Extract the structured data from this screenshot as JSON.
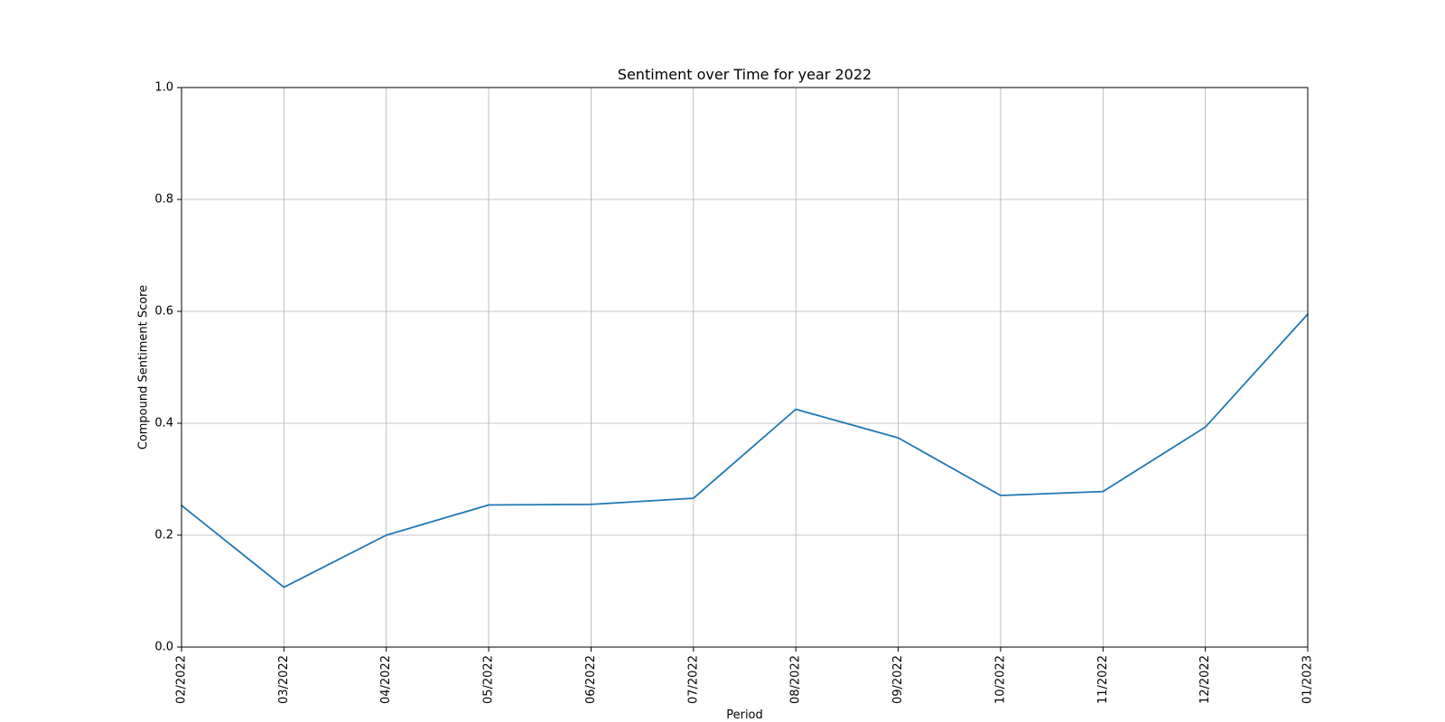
{
  "chart_data": {
    "type": "line",
    "title": "Sentiment over Time for year 2022",
    "xlabel": "Period",
    "ylabel": "Compound Sentiment Score",
    "x": [
      "02/2022",
      "03/2022",
      "04/2022",
      "05/2022",
      "06/2022",
      "07/2022",
      "08/2022",
      "09/2022",
      "10/2022",
      "11/2022",
      "12/2022",
      "01/2023"
    ],
    "series": [
      {
        "name": "",
        "color": "#1f77b4",
        "values": [
          0.253,
          0.107,
          0.2,
          0.254,
          0.255,
          0.266,
          0.425,
          0.374,
          0.271,
          0.278,
          0.393,
          0.595
        ]
      }
    ],
    "ylim": [
      0,
      1.0
    ],
    "yticks": [
      "0.0",
      "0.2",
      "0.4",
      "0.6",
      "0.8",
      "1.0"
    ],
    "grid": true,
    "colors": {
      "grid": "#b0b0b0",
      "axis": "#000000",
      "line": "#1f77b4"
    }
  }
}
